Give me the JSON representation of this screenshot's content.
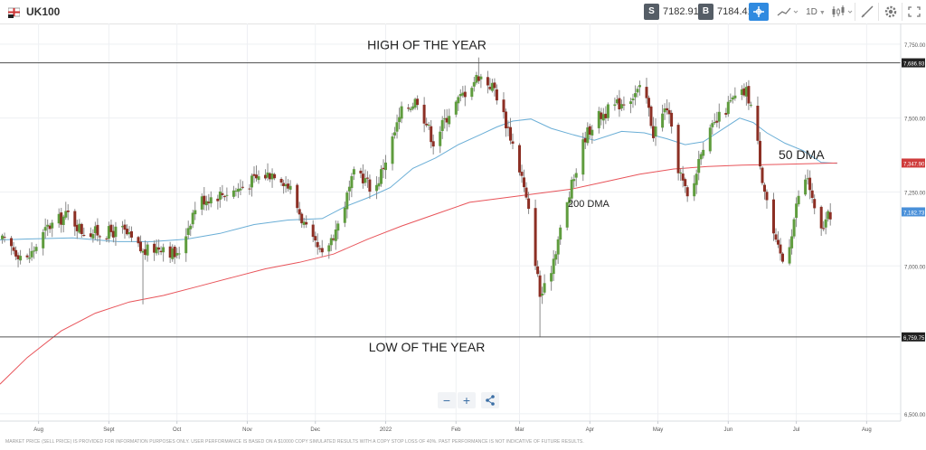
{
  "toolbar": {
    "symbol": "UK100",
    "sell_label": "S",
    "sell_price": "7182.91",
    "buy_label": "B",
    "buy_price": "7184.41",
    "timeframe": "1D",
    "icons": [
      "crosshair-icon",
      "line-chart-icon",
      "timeframe-dropdown",
      "candlestick-icon",
      "drawing-tool-icon",
      "gear-icon",
      "fullscreen-icon"
    ]
  },
  "colors": {
    "candle_up": "#5f9c3e",
    "candle_down": "#8c2f24",
    "ma50": "#6aaed6",
    "ma200": "#e8545a",
    "hline": "#555555",
    "grid": "#eef0f3",
    "accent": "#2f8ae0"
  },
  "zoom_controls": {
    "minus": "−",
    "plus": "+",
    "share_icon": "share-icon"
  },
  "disclaimer": "MARKET PRICE (SELL PRICE) IS PROVIDED FOR INFORMATION PURPOSES ONLY. USER PERFORMANCE IS BASED ON A $10000 COPY SIMULATED RESULTS WITH A COPY STOP LOSS OF 40%. PAST PERFORMANCE IS NOT INDICATIVE OF FUTURE RESULTS.",
  "chart_data": {
    "type": "candlestick",
    "title": "",
    "y_axis": {
      "ticks": [
        7750,
        7500,
        7250,
        7000,
        6500
      ],
      "tick_labels": [
        "7,750.00",
        "7,500.00",
        "7,250.00",
        "7,000.00",
        "6,500.00"
      ],
      "range": [
        6475,
        7820
      ],
      "markers": [
        {
          "label": "7,686.93",
          "value": 7686.93,
          "style": "dark"
        },
        {
          "label": "7,347.90",
          "value": 7347.9,
          "style": "red"
        },
        {
          "label": "7,182.73",
          "value": 7182.73,
          "style": "blue"
        },
        {
          "label": "6,759.75",
          "value": 6759.75,
          "style": "dark"
        }
      ]
    },
    "x_axis": {
      "labels": [
        "Aug",
        "Sept",
        "Oct",
        "Nov",
        "Dec",
        "2022",
        "Feb",
        "Mar",
        "Apr",
        "May",
        "Jun",
        "Jul",
        "Aug"
      ],
      "label_days": [
        5,
        36,
        66,
        97,
        127,
        158,
        189,
        217,
        248,
        278,
        309,
        339,
        370
      ],
      "range_days": [
        -12,
        385
      ]
    },
    "horizontal_lines": [
      {
        "value": 7686.93,
        "label": "HIGH OF THE YEAR"
      },
      {
        "value": 6759.75,
        "label": "LOW OF THE YEAR"
      }
    ],
    "ma_labels": [
      {
        "text": "50 DMA",
        "anchor_day": 355,
        "anchor_value": 7395
      },
      {
        "text": "200 DMA",
        "anchor_day": 254,
        "anchor_value": 7215
      }
    ],
    "anchors": [
      [
        -11,
        7085
      ],
      [
        0,
        7020
      ],
      [
        9,
        7130
      ],
      [
        18,
        7175
      ],
      [
        24,
        7120
      ],
      [
        33,
        7110
      ],
      [
        42,
        7120
      ],
      [
        51,
        7045
      ],
      [
        60,
        7070
      ],
      [
        66,
        7030
      ],
      [
        75,
        7220
      ],
      [
        84,
        7240
      ],
      [
        93,
        7260
      ],
      [
        102,
        7300
      ],
      [
        110,
        7320
      ],
      [
        116,
        7260
      ],
      [
        124,
        7100
      ],
      [
        130,
        7030
      ],
      [
        137,
        7140
      ],
      [
        145,
        7330
      ],
      [
        153,
        7250
      ],
      [
        158,
        7360
      ],
      [
        165,
        7520
      ],
      [
        172,
        7565
      ],
      [
        179,
        7420
      ],
      [
        186,
        7520
      ],
      [
        194,
        7600
      ],
      [
        199,
        7645
      ],
      [
        206,
        7600
      ],
      [
        213,
        7440
      ],
      [
        218,
        7300
      ],
      [
        222,
        7140
      ],
      [
        226,
        6900
      ],
      [
        229,
        6930
      ],
      [
        233,
        7060
      ],
      [
        240,
        7270
      ],
      [
        246,
        7440
      ],
      [
        251,
        7500
      ],
      [
        259,
        7540
      ],
      [
        266,
        7575
      ],
      [
        272,
        7600
      ],
      [
        276,
        7450
      ],
      [
        282,
        7540
      ],
      [
        286,
        7360
      ],
      [
        292,
        7200
      ],
      [
        297,
        7400
      ],
      [
        305,
        7500
      ],
      [
        311,
        7560
      ],
      [
        317,
        7590
      ],
      [
        320,
        7520
      ],
      [
        324,
        7300
      ],
      [
        330,
        7070
      ],
      [
        334,
        7000
      ],
      [
        340,
        7240
      ],
      [
        344,
        7300
      ],
      [
        349,
        7100
      ],
      [
        352,
        7150
      ],
      [
        355,
        7190
      ]
    ],
    "series": [
      {
        "name": "50 DMA",
        "points": [
          [
            -12,
            7088
          ],
          [
            0,
            7091
          ],
          [
            20,
            7095
          ],
          [
            40,
            7082
          ],
          [
            55,
            7082
          ],
          [
            70,
            7090
          ],
          [
            85,
            7110
          ],
          [
            100,
            7140
          ],
          [
            115,
            7155
          ],
          [
            130,
            7160
          ],
          [
            140,
            7200
          ],
          [
            150,
            7230
          ],
          [
            160,
            7265
          ],
          [
            170,
            7330
          ],
          [
            180,
            7365
          ],
          [
            190,
            7410
          ],
          [
            200,
            7445
          ],
          [
            207,
            7470
          ],
          [
            214,
            7490
          ],
          [
            222,
            7497
          ],
          [
            231,
            7465
          ],
          [
            240,
            7445
          ],
          [
            250,
            7425
          ],
          [
            262,
            7455
          ],
          [
            272,
            7450
          ],
          [
            282,
            7430
          ],
          [
            290,
            7410
          ],
          [
            298,
            7420
          ],
          [
            306,
            7460
          ],
          [
            314,
            7500
          ],
          [
            320,
            7485
          ],
          [
            326,
            7450
          ],
          [
            334,
            7415
          ],
          [
            342,
            7390
          ],
          [
            350,
            7350
          ],
          [
            357,
            7347
          ]
        ]
      },
      {
        "name": "200 DMA",
        "points": [
          [
            -12,
            6600
          ],
          [
            0,
            6690
          ],
          [
            15,
            6780
          ],
          [
            30,
            6840
          ],
          [
            45,
            6878
          ],
          [
            60,
            6900
          ],
          [
            75,
            6930
          ],
          [
            90,
            6960
          ],
          [
            105,
            6990
          ],
          [
            120,
            7012
          ],
          [
            135,
            7040
          ],
          [
            150,
            7090
          ],
          [
            165,
            7135
          ],
          [
            180,
            7175
          ],
          [
            195,
            7215
          ],
          [
            210,
            7230
          ],
          [
            225,
            7245
          ],
          [
            240,
            7260
          ],
          [
            255,
            7285
          ],
          [
            270,
            7310
          ],
          [
            285,
            7328
          ],
          [
            300,
            7336
          ],
          [
            315,
            7341
          ],
          [
            330,
            7343
          ],
          [
            345,
            7346
          ],
          [
            357,
            7348
          ]
        ]
      }
    ]
  }
}
